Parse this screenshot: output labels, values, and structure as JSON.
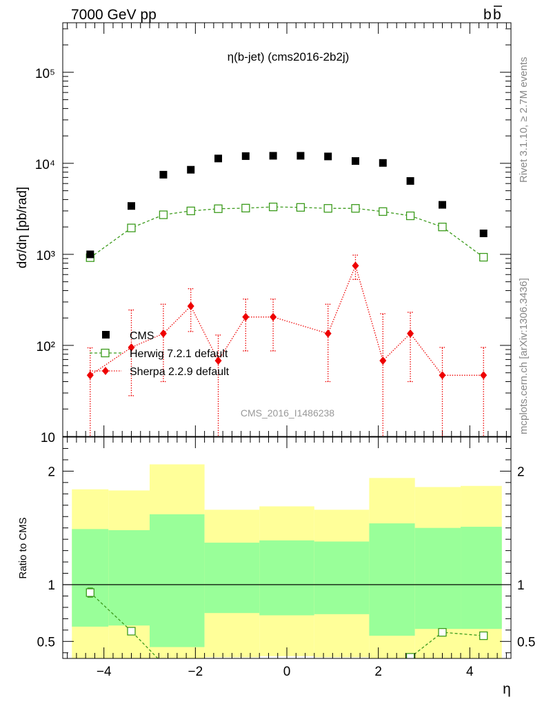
{
  "header": {
    "left": "7000 GeV pp",
    "right_main": "b",
    "right_bar": "b"
  },
  "side_labels": {
    "rivet": "Rivet 3.1.10, ≥ 2.7M events",
    "mcplots": "mcplots.cern.ch [arXiv:1306.3436]"
  },
  "colors": {
    "cms": "#000000",
    "herwig": "#3a9a1a",
    "sherpa": "#ee0000",
    "band_outer": "#ffff99",
    "band_inner": "#99ff99"
  },
  "chart_data": [
    {
      "type": "scatter",
      "title": "η(b-jet) (cms2016-2b2j)",
      "xlabel": "η",
      "ylabel": "dσ/dη [pb/rad]",
      "yscale": "log",
      "xlim": [
        -4.9,
        4.9
      ],
      "ylim": [
        10,
        350000
      ],
      "ytick_labels": [
        "10",
        "10²",
        "10³",
        "10⁴",
        "10⁵"
      ],
      "watermark": "CMS_2016_I1486238",
      "legend_position": "lower-left",
      "series": [
        {
          "name": "CMS",
          "marker": "filled-square",
          "x": [
            -4.3,
            -3.4,
            -2.7,
            -2.1,
            -1.5,
            -0.9,
            -0.3,
            0.3,
            0.9,
            1.5,
            2.1,
            2.7,
            3.4,
            4.3
          ],
          "y": [
            1000,
            3400,
            7500,
            8500,
            11300,
            12000,
            12100,
            12100,
            11900,
            10600,
            10100,
            6400,
            3500,
            1700
          ]
        },
        {
          "name": "Herwig 7.2.1 default",
          "marker": "open-square",
          "x": [
            -4.3,
            -3.4,
            -2.7,
            -2.1,
            -1.5,
            -0.9,
            -0.3,
            0.3,
            0.9,
            1.5,
            2.1,
            2.7,
            3.4,
            4.3
          ],
          "y": [
            920,
            1950,
            2720,
            3000,
            3170,
            3220,
            3320,
            3280,
            3200,
            3200,
            2950,
            2650,
            2000,
            930
          ]
        },
        {
          "name": "Sherpa 2.2.9 default",
          "marker": "filled-diamond",
          "x": [
            -4.3,
            -3.4,
            -2.7,
            -2.1,
            -1.5,
            -0.9,
            -0.3,
            0.9,
            1.5,
            2.1,
            2.7,
            3.4,
            4.3
          ],
          "y": [
            47,
            95,
            135,
            270,
            68,
            205,
            205,
            135,
            750,
            68,
            135,
            47,
            47
          ],
          "yerr_low": [
            40,
            67,
            95,
            128,
            62,
            118,
            118,
            95,
            220,
            62,
            95,
            40,
            40
          ],
          "yerr_high": [
            47,
            150,
            148,
            150,
            62,
            118,
            118,
            148,
            230,
            155,
            96,
            48,
            48
          ]
        }
      ]
    },
    {
      "type": "line",
      "ylabel": "Ratio to CMS",
      "xlabel": "η",
      "xlim": [
        -4.9,
        4.9
      ],
      "ylim": [
        0.35,
        2.3
      ],
      "x_ticks": [
        -4,
        -2,
        0,
        2,
        4
      ],
      "y_ticks": [
        0.5,
        1,
        2
      ],
      "reference_line": 1,
      "bands": [
        {
          "x_low": -4.7,
          "x_high": -3.9,
          "inner_low": 0.63,
          "inner_high": 1.49,
          "outer_low": 0.2,
          "outer_high": 1.84
        },
        {
          "x_low": -3.9,
          "x_high": -3.0,
          "inner_low": 0.64,
          "inner_high": 1.48,
          "outer_low": 0.2,
          "outer_high": 1.83
        },
        {
          "x_low": -3.0,
          "x_high": -1.8,
          "inner_low": 0.45,
          "inner_high": 1.62,
          "outer_low": 0.2,
          "outer_high": 2.06
        },
        {
          "x_low": -1.8,
          "x_high": -0.6,
          "inner_low": 0.75,
          "inner_high": 1.37,
          "outer_low": 0.36,
          "outer_high": 1.66
        },
        {
          "x_low": -0.6,
          "x_high": 0.6,
          "inner_low": 0.73,
          "inner_high": 1.39,
          "outer_low": 0.37,
          "outer_high": 1.69
        },
        {
          "x_low": 0.6,
          "x_high": 1.8,
          "inner_low": 0.74,
          "inner_high": 1.38,
          "outer_low": 0.36,
          "outer_high": 1.66
        },
        {
          "x_low": 1.8,
          "x_high": 2.8,
          "inner_low": 0.55,
          "inner_high": 1.54,
          "outer_low": 0.2,
          "outer_high": 1.94
        },
        {
          "x_low": 2.8,
          "x_high": 3.8,
          "inner_low": 0.61,
          "inner_high": 1.5,
          "outer_low": 0.2,
          "outer_high": 1.86
        },
        {
          "x_low": 3.8,
          "x_high": 4.7,
          "inner_low": 0.61,
          "inner_high": 1.51,
          "outer_low": 0.2,
          "outer_high": 1.87
        }
      ],
      "series": [
        {
          "name": "Herwig 7.2.1 default",
          "x": [
            -4.3,
            -3.4,
            -2.7,
            2.7,
            3.4,
            4.3
          ],
          "y": [
            0.93,
            0.59,
            0.3,
            0.36,
            0.58,
            0.55
          ],
          "err": [
            0.04,
            0.02,
            0.0,
            0.0,
            0.02,
            0.03
          ]
        }
      ]
    }
  ]
}
